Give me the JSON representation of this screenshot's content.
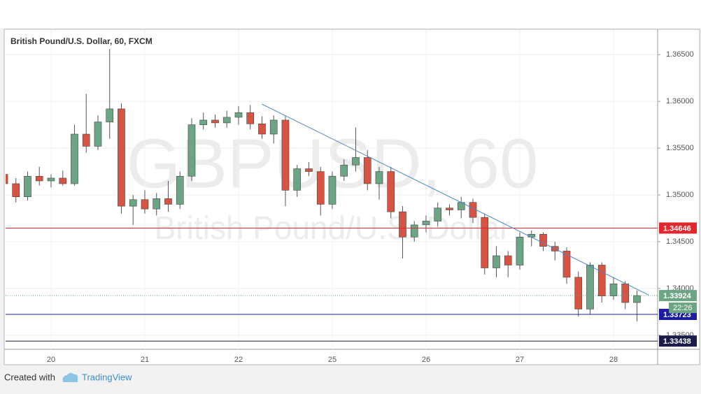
{
  "chart_data": {
    "type": "candlestick",
    "title": "British Pound/U.S. Dollar, 60, FXCM",
    "watermark": "GBPUSD, 60",
    "watermark_subtitle": "British Pound/U.S. Dollar",
    "categories": [
      null,
      null,
      null,
      null,
      "20",
      null,
      null,
      null,
      null,
      null,
      null,
      null,
      "21",
      null,
      null,
      null,
      null,
      null,
      null,
      null,
      "22",
      null,
      null,
      null,
      null,
      null,
      null,
      null,
      "25",
      null,
      null,
      null,
      null,
      null,
      null,
      null,
      "26",
      null,
      null,
      null,
      null,
      null,
      null,
      null,
      "27",
      null,
      null,
      null,
      null,
      null,
      null,
      null,
      "28",
      null,
      null
    ],
    "open": [
      1.3522,
      1.3512,
      1.3498,
      1.352,
      1.3515,
      1.3518,
      1.3512,
      1.3565,
      1.3552,
      1.3578,
      1.3592,
      1.3488,
      1.3495,
      1.3485,
      1.3496,
      1.349,
      1.352,
      1.3575,
      1.358,
      1.3577,
      1.3583,
      1.3588,
      1.3576,
      1.3565,
      1.358,
      1.3505,
      1.3528,
      1.3525,
      1.349,
      1.352,
      1.3532,
      1.354,
      1.3512,
      1.3525,
      1.3482,
      1.3455,
      1.3468,
      1.3472,
      1.3486,
      1.3484,
      1.3492,
      1.3476,
      1.3422,
      1.3435,
      1.3425,
      1.3455,
      1.3458,
      1.3445,
      1.344,
      1.3412,
      1.3378,
      1.3425,
      1.3392,
      1.3405,
      1.3385
    ],
    "high": [
      1.3528,
      1.3518,
      1.3525,
      1.353,
      1.3522,
      1.3526,
      1.3575,
      1.3608,
      1.3585,
      1.3656,
      1.3598,
      1.35,
      1.3505,
      1.3502,
      1.3515,
      1.3525,
      1.3582,
      1.3588,
      1.3586,
      1.359,
      1.3595,
      1.3596,
      1.3584,
      1.3585,
      1.3584,
      1.3532,
      1.3535,
      1.353,
      1.3525,
      1.3538,
      1.3572,
      1.3548,
      1.353,
      1.353,
      1.3488,
      1.3472,
      1.3478,
      1.3492,
      1.349,
      1.3498,
      1.3496,
      1.348,
      1.3445,
      1.344,
      1.346,
      1.3462,
      1.346,
      1.345,
      1.3444,
      1.3418,
      1.3428,
      1.3428,
      1.3412,
      1.3408,
      1.3398
    ],
    "low": [
      1.3505,
      1.3492,
      1.3494,
      1.351,
      1.3508,
      1.351,
      1.351,
      1.3545,
      1.3548,
      1.356,
      1.348,
      1.3468,
      1.348,
      1.3478,
      1.3482,
      1.3485,
      1.3515,
      1.357,
      1.3572,
      1.3572,
      1.3575,
      1.357,
      1.356,
      1.3555,
      1.3488,
      1.3498,
      1.352,
      1.3478,
      1.3485,
      1.3515,
      1.3525,
      1.3505,
      1.3495,
      1.3475,
      1.3432,
      1.345,
      1.346,
      1.3466,
      1.3478,
      1.3475,
      1.347,
      1.3415,
      1.3412,
      1.3412,
      1.342,
      1.3445,
      1.344,
      1.343,
      1.3405,
      1.337,
      1.3372,
      1.3385,
      1.3388,
      1.3378,
      1.3365
    ],
    "close": [
      1.3512,
      1.3498,
      1.352,
      1.3515,
      1.3518,
      1.3512,
      1.3565,
      1.3552,
      1.3578,
      1.3592,
      1.3488,
      1.3495,
      1.3485,
      1.3496,
      1.349,
      1.352,
      1.3575,
      1.358,
      1.3577,
      1.3583,
      1.3588,
      1.3576,
      1.3565,
      1.358,
      1.3505,
      1.3528,
      1.3525,
      1.349,
      1.352,
      1.3532,
      1.354,
      1.3512,
      1.3525,
      1.3482,
      1.3455,
      1.3468,
      1.3472,
      1.3486,
      1.3484,
      1.3492,
      1.3476,
      1.3422,
      1.3435,
      1.3425,
      1.3455,
      1.3458,
      1.3445,
      1.344,
      1.3412,
      1.3378,
      1.3425,
      1.3392,
      1.3405,
      1.3385,
      1.33924
    ],
    "up_color": "#6ba583",
    "down_color": "#d75442",
    "ylim": [
      1.3335,
      1.3677
    ],
    "yticks": [
      {
        "value": 1.365,
        "label": "1.36500"
      },
      {
        "value": 1.36,
        "label": "1.36000"
      },
      {
        "value": 1.355,
        "label": "1.35500"
      },
      {
        "value": 1.35,
        "label": "1.35000"
      },
      {
        "value": 1.345,
        "label": "1.34500"
      },
      {
        "value": 1.34,
        "label": "1.34000"
      },
      {
        "value": 1.335,
        "label": "1.33500"
      }
    ],
    "grid": true,
    "trendline": {
      "x": [
        22,
        55
      ],
      "values": [
        1.3597,
        1.3393
      ],
      "color": "#4a86c8"
    },
    "levels": [
      {
        "value": 1.34646,
        "color": "#e3262b"
      },
      {
        "value": 1.33723,
        "color": "#1d1da3"
      },
      {
        "value": 1.33438,
        "color": "#1b1b4a"
      }
    ],
    "last_price": 1.33924,
    "countdown": "22:26"
  },
  "footer": {
    "created_with": "Created with",
    "brand": "TradingView"
  }
}
